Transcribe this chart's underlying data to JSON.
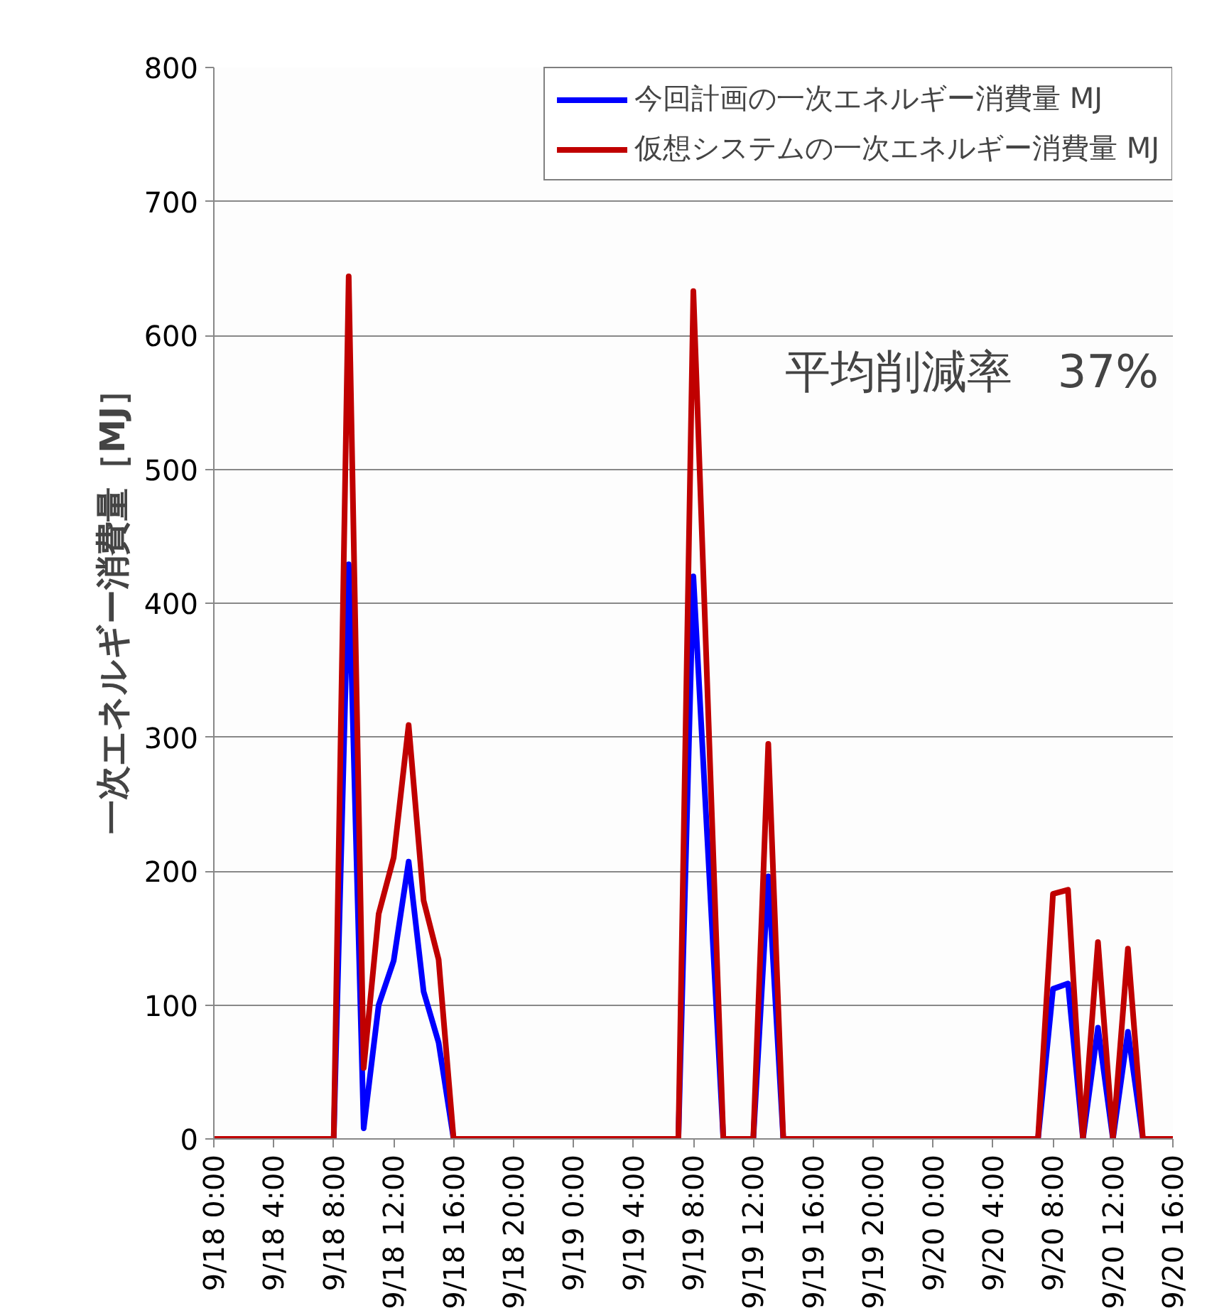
{
  "chart_data": {
    "type": "line",
    "ylabel": "一次エネルギー消費量［MJ］",
    "categories": [
      "9/18 0:00",
      null,
      null,
      null,
      "9/18 4:00",
      null,
      null,
      null,
      "9/18 8:00",
      null,
      null,
      null,
      "9/18 12:00",
      null,
      null,
      null,
      "9/18 16:00",
      null,
      null,
      null,
      "9/18 20:00",
      null,
      null,
      null,
      "9/19 0:00",
      null,
      null,
      null,
      "9/19 4:00",
      null,
      null,
      null,
      "9/19 8:00",
      null,
      null,
      null,
      "9/19 12:00",
      null,
      null,
      null,
      "9/19 16:00",
      null,
      null,
      null,
      "9/19 20:00",
      null,
      null,
      null,
      "9/20 0:00",
      null,
      null,
      null,
      "9/20 4:00",
      null,
      null,
      null,
      "9/20 8:00",
      null,
      null,
      null,
      "9/20 12:00",
      null,
      null,
      null,
      "9/20 16:00"
    ],
    "series": [
      {
        "name": "今回計画の一次エネルギー消費量 MJ",
        "color": "#0000ff",
        "values": [
          null,
          null,
          null,
          null,
          null,
          null,
          null,
          null,
          0,
          429,
          8,
          100,
          133,
          207,
          110,
          72,
          0,
          null,
          null,
          null,
          null,
          null,
          null,
          null,
          null,
          null,
          null,
          null,
          null,
          null,
          null,
          0,
          420,
          210,
          0,
          null,
          0,
          196,
          0,
          null,
          null,
          null,
          null,
          null,
          null,
          null,
          null,
          null,
          null,
          null,
          null,
          null,
          null,
          null,
          null,
          0,
          112,
          116,
          0,
          83,
          0,
          80,
          0,
          null,
          null
        ]
      },
      {
        "name": "仮想システムの一次エネルギー消費量 MJ",
        "color": "#c00000",
        "values": [
          0,
          0,
          0,
          0,
          0,
          0,
          0,
          0,
          0,
          644,
          53,
          168,
          210,
          309,
          178,
          134,
          0,
          0,
          0,
          0,
          0,
          0,
          0,
          0,
          0,
          0,
          0,
          0,
          0,
          0,
          0,
          0,
          633,
          316,
          0,
          0,
          0,
          295,
          0,
          0,
          0,
          0,
          0,
          0,
          0,
          0,
          0,
          0,
          0,
          0,
          0,
          0,
          0,
          0,
          0,
          0,
          183,
          186,
          0,
          147,
          0,
          142,
          0,
          0,
          0
        ]
      }
    ],
    "ylim": [
      0,
      800
    ],
    "yticks": [
      0,
      100,
      200,
      300,
      400,
      500,
      600,
      700,
      800
    ],
    "grid": "y",
    "legend": "top right",
    "line_style": "solid",
    "marker": "none",
    "annotations": [
      "平均削減率　37%"
    ]
  }
}
